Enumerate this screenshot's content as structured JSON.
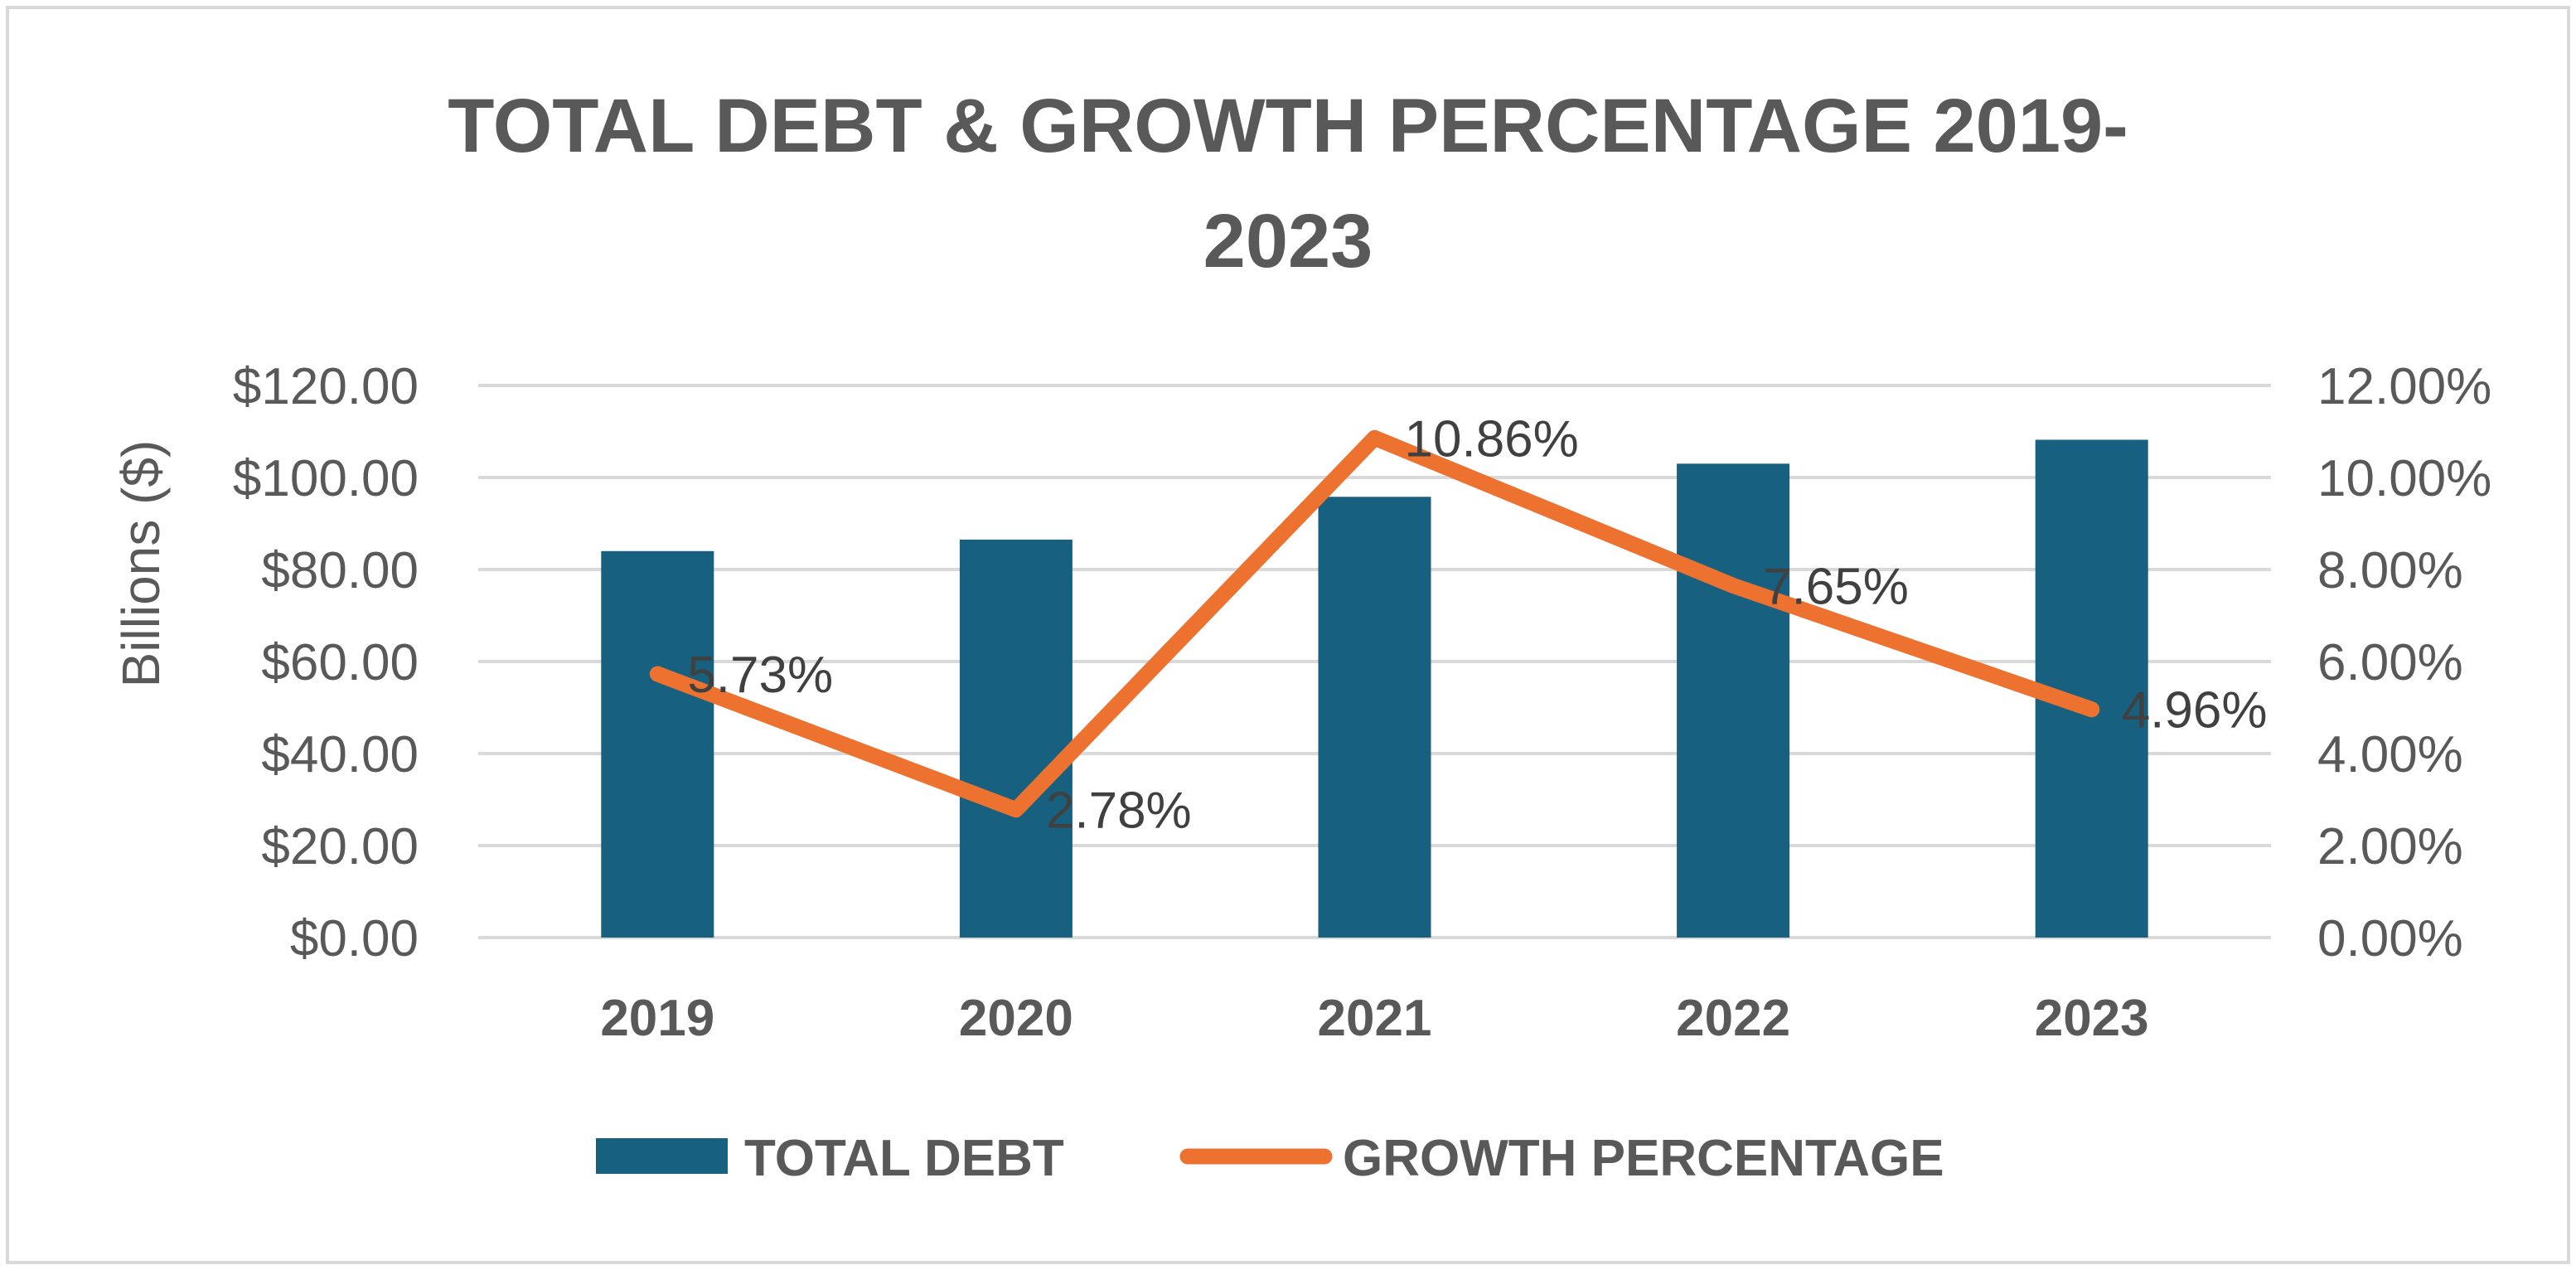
{
  "chart_data": {
    "type": "bar",
    "title_lines": [
      "TOTAL DEBT & GROWTH PERCENTAGE 2019-",
      "2023"
    ],
    "categories": [
      "2019",
      "2020",
      "2021",
      "2022",
      "2023"
    ],
    "series": [
      {
        "name": "TOTAL DEBT",
        "type": "bar",
        "axis": "left",
        "color": "#17607f",
        "values": [
          84.0,
          86.5,
          95.8,
          103.0,
          108.2
        ]
      },
      {
        "name": "GROWTH PERCENTAGE",
        "type": "line",
        "axis": "right",
        "color": "#ed7230",
        "values": [
          5.73,
          2.78,
          10.86,
          7.65,
          4.96
        ],
        "labels": [
          "5.73%",
          "2.78%",
          "10.86%",
          "7.65%",
          "4.96%"
        ]
      }
    ],
    "ylabel": "Billions ($)",
    "ylim": [
      0,
      120
    ],
    "yticks": [
      "$0.00",
      "$20.00",
      "$40.00",
      "$60.00",
      "$80.00",
      "$100.00",
      "$120.00"
    ],
    "y2lim": [
      0,
      12
    ],
    "y2ticks": [
      "0.00%",
      "2.00%",
      "4.00%",
      "6.00%",
      "8.00%",
      "10.00%",
      "12.00%"
    ],
    "grid": true,
    "legend_position": "bottom",
    "colors": {
      "gridline": "#d9d9d9",
      "border": "#d9d9d9",
      "text": "#595959"
    }
  }
}
